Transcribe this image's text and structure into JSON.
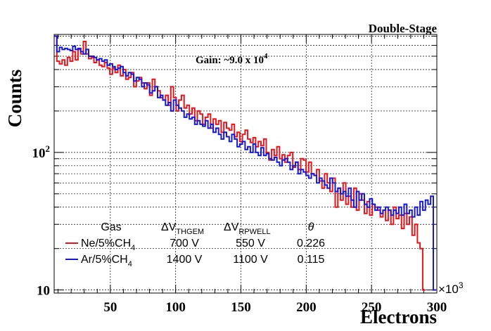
{
  "chart_data": {
    "type": "line",
    "step": true,
    "title": "Double-Stage",
    "annotation": "Gain: ~9.0 x 10",
    "annotation_exp": "4",
    "xlabel": "Electrons",
    "ylabel": "Counts",
    "x_multiplier_base": "×10",
    "x_multiplier_exp": "3",
    "xlim": [
      7,
      300
    ],
    "ylim": [
      9.5,
      720
    ],
    "y_scale": "log",
    "x_ticks": [
      50,
      100,
      150,
      200,
      250,
      300
    ],
    "x_tick_labels": [
      "50",
      "100",
      "150",
      "200",
      "250",
      "300"
    ],
    "y_tick_labels": [
      {
        "value": 10,
        "base": "10",
        "exp": ""
      },
      {
        "value": 100,
        "base": "10",
        "exp": "2"
      }
    ],
    "grid": true,
    "table": {
      "headers": [
        {
          "base": "Gas",
          "sub": ""
        },
        {
          "base": "ΔV",
          "sub": "THGEM"
        },
        {
          "base": "ΔV",
          "sub": "RPWELL"
        },
        {
          "base": "θ",
          "sub": ""
        }
      ],
      "rows": [
        {
          "gas": "Ne/5%CH",
          "gas_sub": "4",
          "v_thgem": "700 V",
          "v_rpwell": "550 V",
          "theta": "0.226"
        },
        {
          "gas": "Ar/5%CH",
          "gas_sub": "4",
          "v_thgem": "1400 V",
          "v_rpwell": "1100 V",
          "theta": "0.115"
        }
      ]
    },
    "series": [
      {
        "name": "Ne/5%CH4",
        "color": "#e8141c",
        "x_start": 7,
        "bin_width": 2.03,
        "values": [
          700,
          460,
          440,
          470,
          430,
          490,
          460,
          540,
          470,
          560,
          520,
          640,
          520,
          480,
          490,
          450,
          470,
          430,
          420,
          450,
          410,
          370,
          410,
          380,
          430,
          360,
          400,
          340,
          350,
          380,
          300,
          330,
          350,
          320,
          290,
          320,
          260,
          340,
          300,
          280,
          250,
          240,
          260,
          220,
          300,
          250,
          200,
          240,
          260,
          210,
          220,
          190,
          210,
          170,
          200,
          190,
          160,
          180,
          190,
          150,
          175,
          160,
          170,
          140,
          165,
          150,
          145,
          160,
          130,
          140,
          120,
          135,
          145,
          125,
          118,
          128,
          110,
          120,
          112,
          125,
          100,
          88,
          105,
          95,
          110,
          90,
          96,
          85,
          95,
          100,
          78,
          85,
          75,
          90,
          88,
          72,
          85,
          70,
          68,
          75,
          62,
          55,
          70,
          60,
          52,
          65,
          40,
          55,
          45,
          60,
          42,
          48,
          40,
          55,
          38,
          50,
          45,
          36,
          44,
          35,
          42,
          40,
          38,
          34,
          38,
          32,
          38,
          30,
          40,
          33,
          35,
          28,
          36,
          30,
          34,
          25,
          30,
          22,
          20,
          10
        ]
      },
      {
        "name": "Ar/5%CH4",
        "color": "#1717d4",
        "x_start": 7,
        "bin_width": 2.03,
        "values": [
          700,
          540,
          580,
          560,
          570,
          560,
          550,
          590,
          560,
          570,
          540,
          520,
          560,
          500,
          500,
          490,
          470,
          480,
          460,
          470,
          430,
          440,
          420,
          400,
          410,
          420,
          380,
          360,
          380,
          370,
          330,
          350,
          340,
          300,
          320,
          310,
          270,
          280,
          300,
          250,
          260,
          240,
          220,
          230,
          200,
          240,
          220,
          210,
          200,
          180,
          190,
          175,
          180,
          160,
          170,
          160,
          155,
          170,
          150,
          160,
          140,
          150,
          135,
          125,
          140,
          130,
          120,
          135,
          125,
          110,
          115,
          120,
          105,
          110,
          100,
          115,
          100,
          95,
          108,
          95,
          98,
          90,
          88,
          92,
          85,
          80,
          88,
          90,
          85,
          75,
          80,
          85,
          70,
          75,
          72,
          68,
          65,
          70,
          68,
          60,
          65,
          62,
          58,
          55,
          65,
          60,
          52,
          55,
          50,
          52,
          48,
          55,
          45,
          40,
          52,
          45,
          50,
          42,
          40,
          46,
          42,
          38,
          40,
          36,
          38,
          40,
          38,
          35,
          38,
          36,
          40,
          35,
          42,
          36,
          38,
          34,
          40,
          35,
          44,
          38,
          45,
          42,
          48,
          10
        ]
      }
    ]
  }
}
